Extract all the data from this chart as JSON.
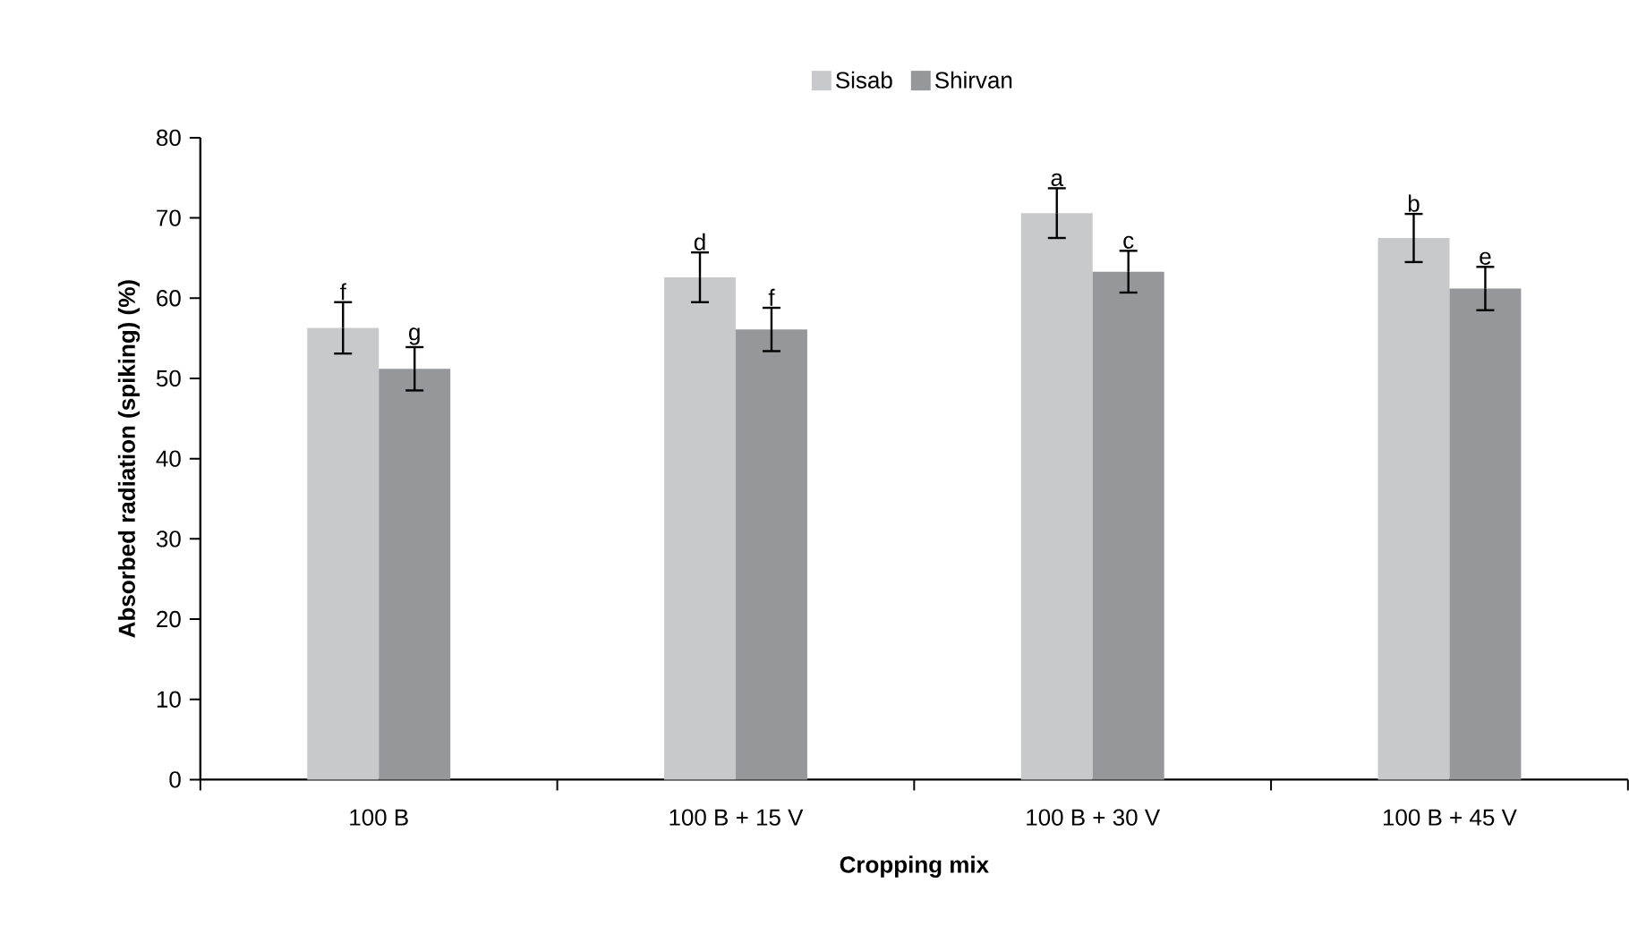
{
  "chart_data": {
    "type": "bar",
    "xlabel": "Cropping mix",
    "ylabel": "Absorbed radiation (spiking) (%)",
    "categories": [
      "100 B",
      "100 B + 15 V",
      "100 B + 30 V",
      "100 B + 45 V"
    ],
    "series": [
      {
        "name": "Sisab",
        "color": "#c8c9cb",
        "values": [
          56.3,
          62.6,
          70.6,
          67.5
        ],
        "errors": [
          3.2,
          3.1,
          3.1,
          3.0
        ]
      },
      {
        "name": "Shirvan",
        "color": "#96979b",
        "values": [
          51.2,
          56.1,
          63.3,
          61.2
        ],
        "errors": [
          2.7,
          2.7,
          2.6,
          2.7
        ]
      }
    ],
    "annotations": [
      "f",
      "g",
      "d",
      "f",
      "a",
      "c",
      "b",
      "e"
    ],
    "ylim": [
      0,
      80
    ],
    "yticks": [
      0,
      10,
      20,
      30,
      40,
      50,
      60,
      70,
      80
    ],
    "grid": false,
    "legend": "top"
  }
}
